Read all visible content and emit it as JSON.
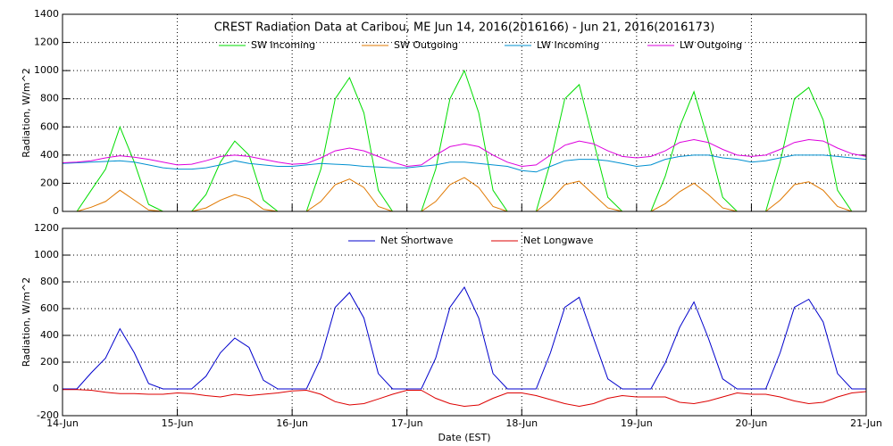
{
  "chart_data": [
    {
      "type": "line",
      "title": "CREST Radiation Data at Caribou, ME   Jun 14, 2016(2016166) - Jun 21, 2016(2016173)",
      "ylabel": "Radiation, W/m^2",
      "x": [
        0,
        0.125,
        0.25,
        0.375,
        0.5,
        0.625,
        0.75,
        0.875,
        1,
        1.125,
        1.25,
        1.375,
        1.5,
        1.625,
        1.75,
        1.875,
        2,
        2.125,
        2.25,
        2.375,
        2.5,
        2.625,
        2.75,
        2.875,
        3,
        3.125,
        3.25,
        3.375,
        3.5,
        3.625,
        3.75,
        3.875,
        4,
        4.125,
        4.25,
        4.375,
        4.5,
        4.625,
        4.75,
        4.875,
        5,
        5.125,
        5.25,
        5.375,
        5.5,
        5.625,
        5.75,
        5.875,
        6,
        6.125,
        6.25,
        6.375,
        6.5,
        6.625,
        6.75,
        6.875,
        7
      ],
      "xlim": [
        0,
        7
      ],
      "xticks": [
        0,
        1,
        2,
        3,
        4,
        5,
        6,
        7
      ],
      "ylim": [
        0,
        1400
      ],
      "yticks": [
        0,
        200,
        400,
        600,
        800,
        1000,
        1200,
        1400
      ],
      "grid": true,
      "series": [
        {
          "name": "SW Incoming",
          "color": "#00dd00",
          "values": [
            0,
            0,
            150,
            300,
            600,
            350,
            50,
            0,
            0,
            0,
            120,
            350,
            500,
            400,
            80,
            0,
            0,
            0,
            300,
            800,
            950,
            700,
            150,
            0,
            0,
            0,
            300,
            800,
            1000,
            700,
            150,
            0,
            0,
            0,
            350,
            800,
            900,
            500,
            100,
            0,
            0,
            0,
            250,
            600,
            850,
            500,
            100,
            0,
            0,
            0,
            350,
            800,
            880,
            650,
            150,
            0,
            0
          ]
        },
        {
          "name": "SW Outgoing",
          "color": "#e07800",
          "values": [
            0,
            0,
            30,
            70,
            150,
            80,
            10,
            0,
            0,
            0,
            25,
            80,
            120,
            90,
            15,
            0,
            0,
            0,
            70,
            190,
            230,
            170,
            35,
            0,
            0,
            0,
            70,
            190,
            240,
            170,
            35,
            0,
            0,
            0,
            80,
            190,
            215,
            120,
            25,
            0,
            0,
            0,
            55,
            140,
            200,
            120,
            25,
            0,
            0,
            0,
            80,
            190,
            210,
            150,
            35,
            0,
            0
          ]
        },
        {
          "name": "LW Incoming",
          "color": "#0090d0",
          "values": [
            340,
            345,
            350,
            355,
            360,
            350,
            330,
            310,
            300,
            300,
            310,
            330,
            360,
            340,
            330,
            320,
            320,
            330,
            340,
            335,
            330,
            320,
            315,
            310,
            310,
            320,
            330,
            350,
            350,
            340,
            330,
            320,
            290,
            280,
            320,
            360,
            370,
            370,
            360,
            340,
            320,
            330,
            370,
            390,
            400,
            400,
            380,
            370,
            350,
            360,
            380,
            400,
            400,
            400,
            390,
            380,
            370
          ]
        },
        {
          "name": "LW Outgoing",
          "color": "#dd00dd",
          "values": [
            345,
            350,
            360,
            380,
            395,
            385,
            370,
            350,
            330,
            335,
            360,
            390,
            400,
            390,
            370,
            350,
            335,
            340,
            380,
            430,
            450,
            430,
            390,
            350,
            320,
            330,
            400,
            460,
            480,
            460,
            400,
            350,
            320,
            330,
            400,
            470,
            500,
            480,
            430,
            390,
            380,
            390,
            430,
            490,
            510,
            490,
            440,
            400,
            390,
            400,
            440,
            490,
            510,
            500,
            450,
            410,
            390
          ]
        }
      ]
    },
    {
      "type": "line",
      "ylabel": "Radiation, W/m^2",
      "xlabel": "Date (EST)",
      "x": [
        0,
        0.125,
        0.25,
        0.375,
        0.5,
        0.625,
        0.75,
        0.875,
        1,
        1.125,
        1.25,
        1.375,
        1.5,
        1.625,
        1.75,
        1.875,
        2,
        2.125,
        2.25,
        2.375,
        2.5,
        2.625,
        2.75,
        2.875,
        3,
        3.125,
        3.25,
        3.375,
        3.5,
        3.625,
        3.75,
        3.875,
        4,
        4.125,
        4.25,
        4.375,
        4.5,
        4.625,
        4.75,
        4.875,
        5,
        5.125,
        5.25,
        5.375,
        5.5,
        5.625,
        5.75,
        5.875,
        6,
        6.125,
        6.25,
        6.375,
        6.5,
        6.625,
        6.75,
        6.875,
        7
      ],
      "xlim": [
        0,
        7
      ],
      "xticks": [
        {
          "value": 0,
          "label": "14-Jun"
        },
        {
          "value": 1,
          "label": "15-Jun"
        },
        {
          "value": 2,
          "label": "16-Jun"
        },
        {
          "value": 3,
          "label": "17-Jun"
        },
        {
          "value": 4,
          "label": "18-Jun"
        },
        {
          "value": 5,
          "label": "19-Jun"
        },
        {
          "value": 6,
          "label": "20-Jun"
        },
        {
          "value": 7,
          "label": "21-Jun"
        }
      ],
      "ylim": [
        -200,
        1200
      ],
      "yticks": [
        -200,
        0,
        200,
        400,
        600,
        800,
        1000,
        1200
      ],
      "grid": true,
      "series": [
        {
          "name": "Net Shortwave",
          "color": "#0000cc",
          "values": [
            0,
            0,
            120,
            230,
            450,
            270,
            40,
            0,
            0,
            0,
            95,
            270,
            380,
            310,
            65,
            0,
            0,
            0,
            230,
            610,
            720,
            530,
            115,
            0,
            0,
            0,
            230,
            610,
            760,
            530,
            115,
            0,
            0,
            0,
            270,
            610,
            685,
            380,
            75,
            0,
            0,
            0,
            195,
            460,
            650,
            380,
            75,
            0,
            0,
            0,
            270,
            610,
            670,
            500,
            115,
            0,
            0
          ]
        },
        {
          "name": "Net Longwave",
          "color": "#dd0000",
          "values": [
            -5,
            -5,
            -10,
            -25,
            -35,
            -35,
            -40,
            -40,
            -30,
            -35,
            -50,
            -60,
            -40,
            -50,
            -40,
            -30,
            -15,
            -10,
            -40,
            -95,
            -120,
            -110,
            -75,
            -40,
            -10,
            -10,
            -70,
            -110,
            -130,
            -120,
            -70,
            -30,
            -30,
            -50,
            -80,
            -110,
            -130,
            -110,
            -70,
            -50,
            -60,
            -60,
            -60,
            -100,
            -110,
            -90,
            -60,
            -30,
            -40,
            -40,
            -60,
            -90,
            -110,
            -100,
            -60,
            -30,
            -20
          ]
        }
      ]
    }
  ]
}
